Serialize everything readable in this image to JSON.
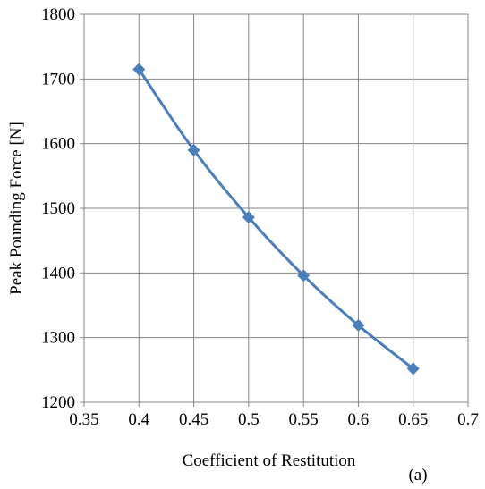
{
  "chart_data": {
    "type": "line",
    "title": "",
    "xlabel": "Coefficient of Restitution",
    "ylabel": "Peak Pounding Force [N]",
    "panel_label": "(a)",
    "xlim": [
      0.35,
      0.7
    ],
    "ylim": [
      1200,
      1800
    ],
    "x_ticks": [
      0.35,
      0.4,
      0.45,
      0.5,
      0.55,
      0.6,
      0.65,
      0.7
    ],
    "x_tick_labels": [
      "0.35",
      "0.4",
      "0.45",
      "0.5",
      "0.55",
      "0.6",
      "0.65",
      "0.7"
    ],
    "y_ticks": [
      1200,
      1300,
      1400,
      1500,
      1600,
      1700,
      1800
    ],
    "y_tick_labels": [
      "1200",
      "1300",
      "1400",
      "1500",
      "1600",
      "1700",
      "1800"
    ],
    "grid": true,
    "series": [
      {
        "x": [
          0.4,
          0.45,
          0.5,
          0.55,
          0.6,
          0.65
        ],
        "y": [
          1715,
          1590,
          1486,
          1396,
          1319,
          1252
        ],
        "color": "#4a7ebb",
        "marker": "diamond"
      }
    ]
  }
}
